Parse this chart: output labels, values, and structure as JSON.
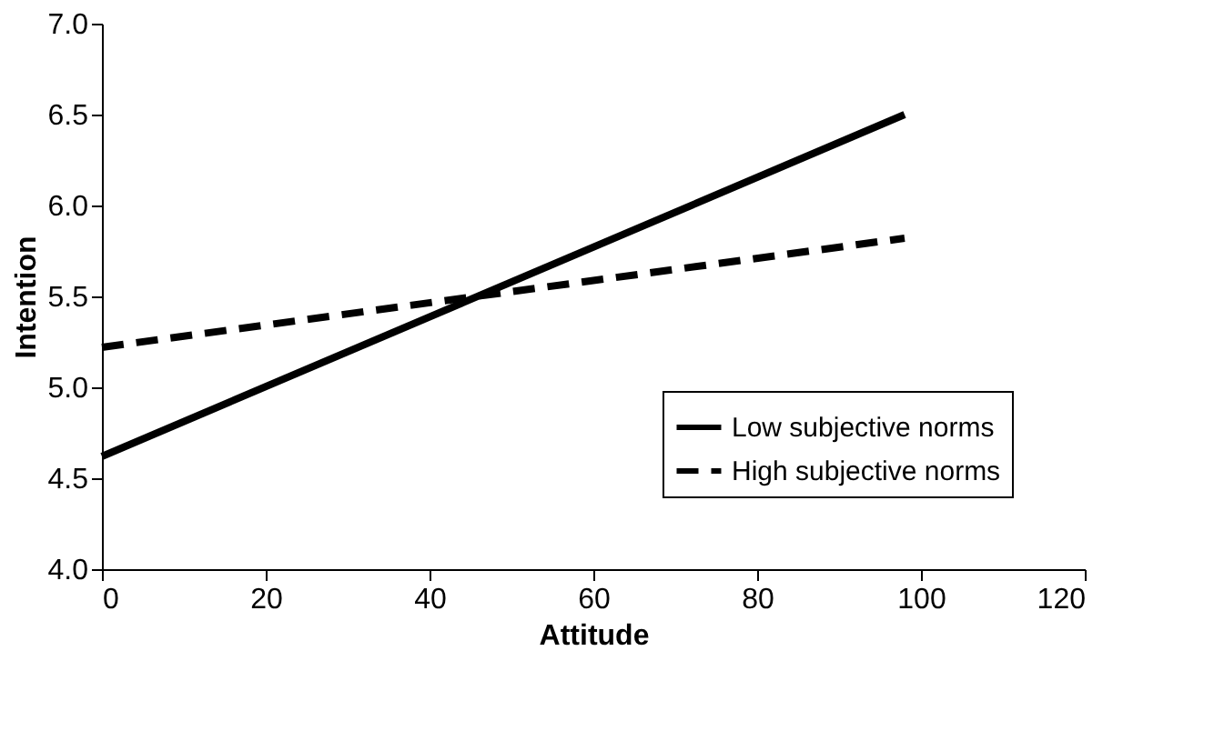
{
  "chart_data": {
    "type": "line",
    "xlabel": "Attitude",
    "ylabel": "Intention",
    "xlim": [
      0,
      120
    ],
    "xticks": [
      0,
      20,
      40,
      60,
      80,
      100,
      120
    ],
    "ylim": [
      4.0,
      7.0
    ],
    "yticks": [
      {
        "value": 4.0,
        "label": "4.0"
      },
      {
        "value": 4.5,
        "label": "4.5"
      },
      {
        "value": 5.0,
        "label": "5.0"
      },
      {
        "value": 5.5,
        "label": "5.5"
      },
      {
        "value": 6.0,
        "label": "6.0"
      },
      {
        "value": 6.5,
        "label": "6.5"
      },
      {
        "value": 7.0,
        "label": "7.0"
      }
    ],
    "x": [
      0,
      98
    ],
    "grid": false,
    "legend": "bottom right",
    "marker": "none",
    "series": [
      {
        "name": "Low subjective norms",
        "color": "#000000",
        "values": [
          4.62,
          6.5
        ],
        "line_style": "solid"
      },
      {
        "name": "High subjective norms",
        "color": "#000000",
        "values": [
          5.22,
          5.82
        ],
        "line_style": "dashed"
      }
    ]
  }
}
